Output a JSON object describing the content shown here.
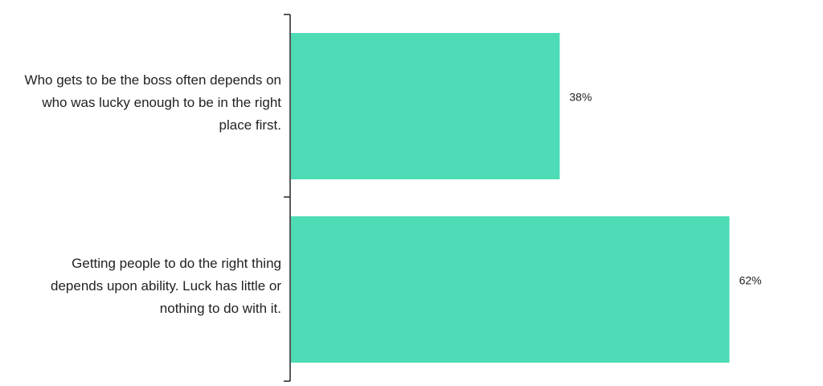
{
  "chart_data": {
    "type": "hbar",
    "categories": [
      "Who gets to be the boss often depends on who was lucky enough to be in the right place first.",
      "Getting people to do the right thing depends upon ability. Luck has little or nothing to do with it."
    ],
    "values": [
      38,
      62
    ],
    "value_labels": [
      "38%",
      "62%"
    ],
    "color": "#4ddcb6"
  }
}
